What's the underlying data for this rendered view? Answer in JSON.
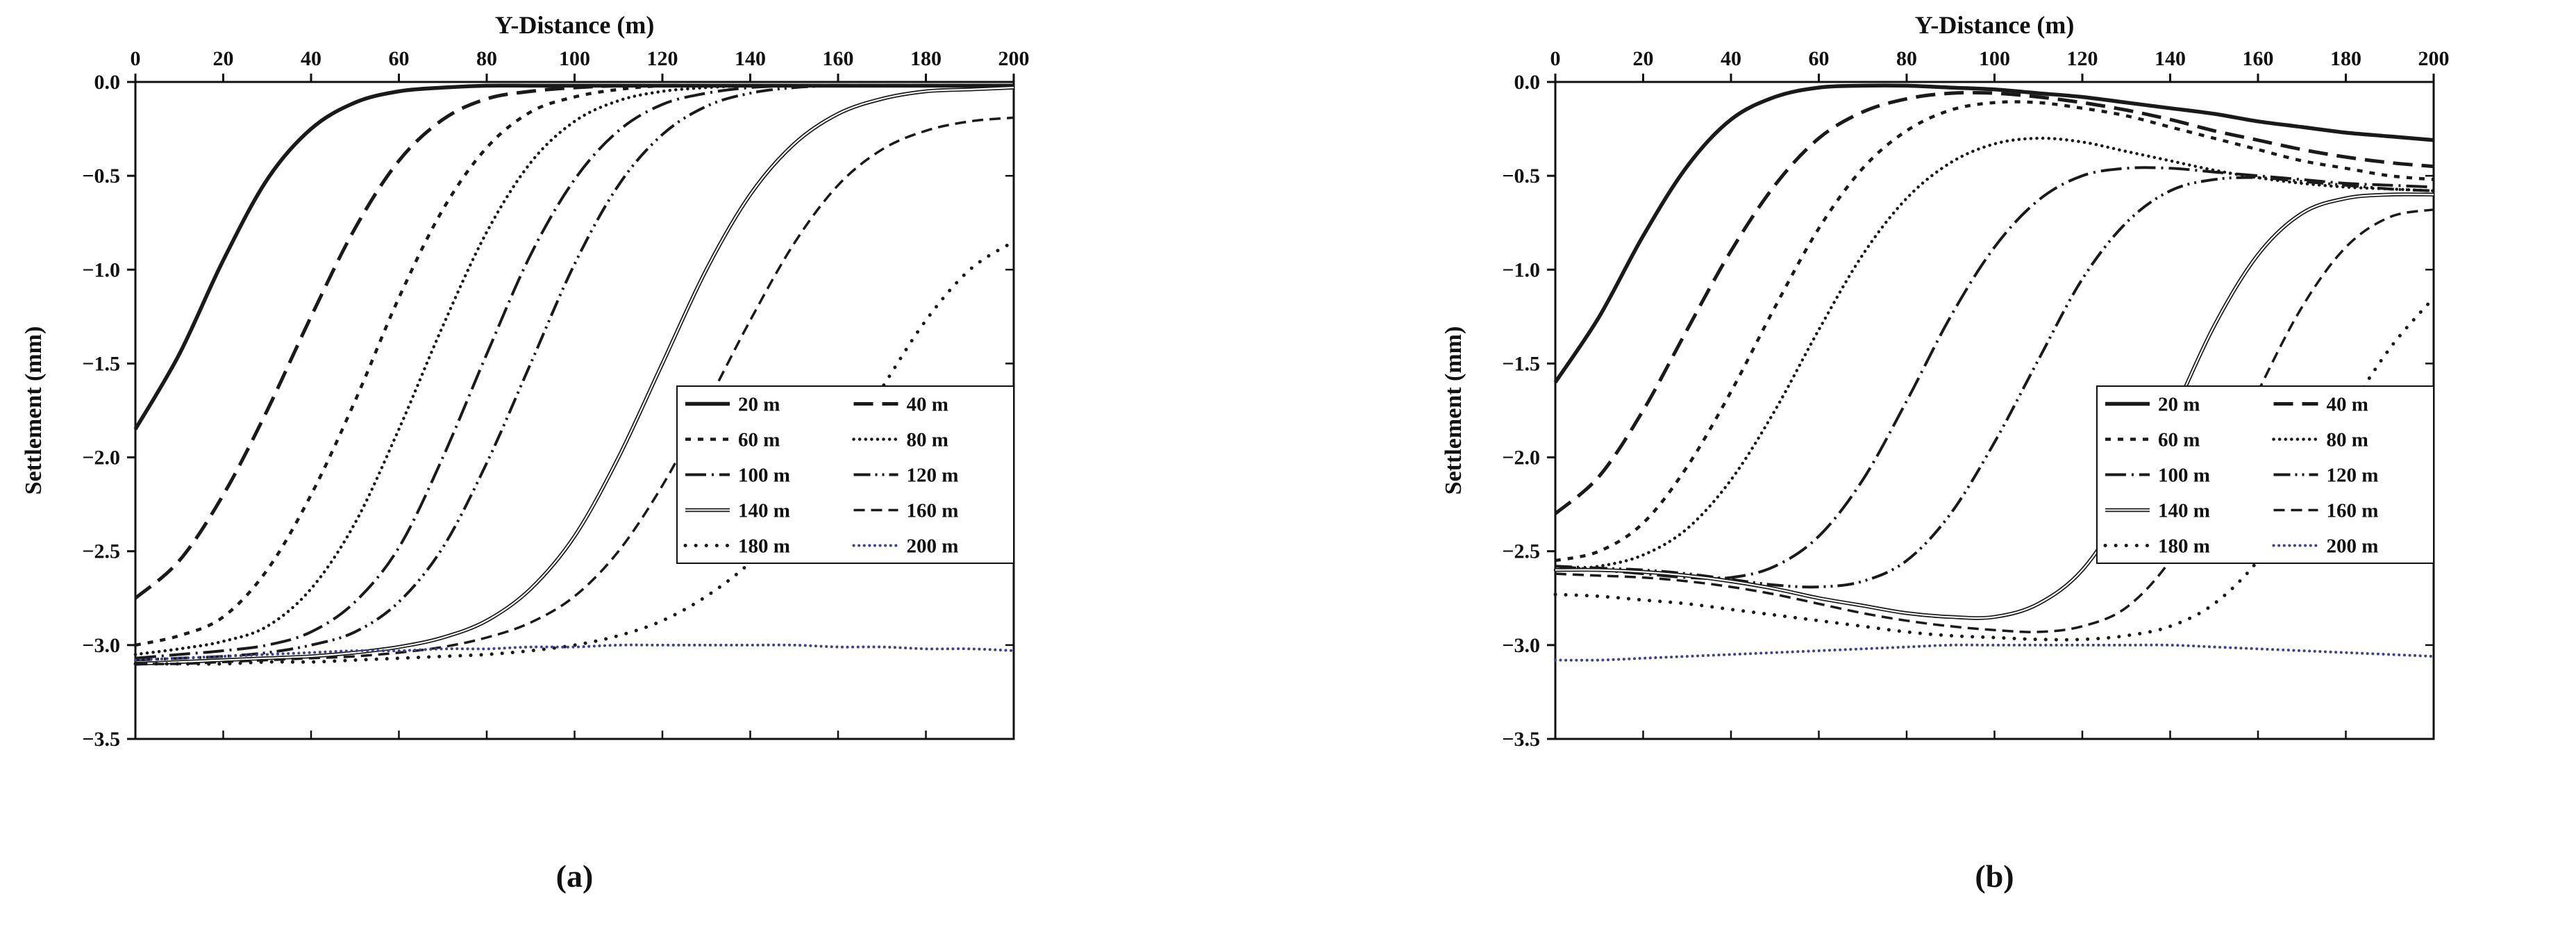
{
  "figure": {
    "background": "#ffffff",
    "line_color": "#1a1a1a",
    "accent_200m_color": "#40408c"
  },
  "chart_data": [
    {
      "type": "line",
      "title": "Y-Distance (m)",
      "xlabel": "Y-Distance (m)",
      "ylabel": "Settlement (mm)",
      "caption": "(a)",
      "xlim": [
        0,
        200
      ],
      "ylim": [
        -3.5,
        0
      ],
      "x_axis_position": "top",
      "grid": false,
      "legend_position": "inside-lower-right",
      "x_ticks": [
        0,
        20,
        40,
        60,
        80,
        100,
        120,
        140,
        160,
        180,
        200
      ],
      "x_tick_labels": [
        "0",
        "20",
        "40",
        "60",
        "80",
        "100",
        "120",
        "140",
        "160",
        "180",
        "200"
      ],
      "y_ticks": [
        0,
        -0.5,
        -1.0,
        -1.5,
        -2.0,
        -2.5,
        -3.0,
        -3.5
      ],
      "y_tick_labels": [
        "0.0",
        "−0.5",
        "−1.0",
        "−1.5",
        "−2.0",
        "−2.5",
        "−3.0",
        "−3.5"
      ],
      "x": [
        0,
        10,
        20,
        30,
        40,
        50,
        60,
        70,
        80,
        90,
        100,
        110,
        120,
        130,
        140,
        150,
        160,
        170,
        180,
        190,
        200
      ],
      "series": [
        {
          "name": "20 m",
          "style": "solid",
          "color": "#1a1a1a",
          "values": [
            -1.85,
            -1.45,
            -0.95,
            -0.52,
            -0.25,
            -0.11,
            -0.05,
            -0.03,
            -0.02,
            -0.02,
            -0.02,
            -0.02,
            -0.02,
            -0.02,
            -0.02,
            -0.02,
            -0.02,
            -0.02,
            -0.02,
            -0.02,
            -0.02
          ]
        },
        {
          "name": "40 m",
          "style": "long-dash",
          "color": "#1a1a1a",
          "values": [
            -2.75,
            -2.55,
            -2.2,
            -1.75,
            -1.25,
            -0.78,
            -0.42,
            -0.2,
            -0.09,
            -0.05,
            -0.03,
            -0.02,
            -0.02,
            -0.02,
            -0.02,
            -0.02,
            -0.02,
            -0.02,
            -0.02,
            -0.02,
            -0.02
          ]
        },
        {
          "name": "60 m",
          "style": "short-dash",
          "color": "#1a1a1a",
          "values": [
            -3.0,
            -2.95,
            -2.85,
            -2.6,
            -2.2,
            -1.7,
            -1.15,
            -0.68,
            -0.35,
            -0.16,
            -0.08,
            -0.04,
            -0.02,
            -0.02,
            -0.02,
            -0.02,
            -0.02,
            -0.02,
            -0.02,
            -0.02,
            -0.02
          ]
        },
        {
          "name": "80 m",
          "style": "dot",
          "color": "#1a1a1a",
          "values": [
            -3.05,
            -3.02,
            -2.98,
            -2.9,
            -2.7,
            -2.35,
            -1.85,
            -1.3,
            -0.8,
            -0.43,
            -0.21,
            -0.1,
            -0.05,
            -0.03,
            -0.02,
            -0.02,
            -0.02,
            -0.02,
            -0.02,
            -0.02,
            -0.02
          ]
        },
        {
          "name": "100 m",
          "style": "dash-dot",
          "color": "#1a1a1a",
          "values": [
            -3.07,
            -3.05,
            -3.03,
            -3.0,
            -2.93,
            -2.77,
            -2.48,
            -2.0,
            -1.45,
            -0.92,
            -0.52,
            -0.26,
            -0.12,
            -0.06,
            -0.03,
            -0.02,
            -0.02,
            -0.02,
            -0.02,
            -0.02,
            -0.02
          ]
        },
        {
          "name": "120 m",
          "style": "dash-dot-dot",
          "color": "#1a1a1a",
          "values": [
            -3.08,
            -3.07,
            -3.06,
            -3.04,
            -3.0,
            -2.93,
            -2.77,
            -2.48,
            -2.03,
            -1.5,
            -0.97,
            -0.55,
            -0.28,
            -0.13,
            -0.06,
            -0.03,
            -0.02,
            -0.02,
            -0.02,
            -0.02,
            -0.02
          ]
        },
        {
          "name": "140 m",
          "style": "double-solid",
          "color": "#1a1a1a",
          "values": [
            -3.1,
            -3.09,
            -3.08,
            -3.07,
            -3.06,
            -3.04,
            -3.01,
            -2.96,
            -2.87,
            -2.7,
            -2.42,
            -2.0,
            -1.5,
            -1.0,
            -0.6,
            -0.33,
            -0.17,
            -0.09,
            -0.05,
            -0.04,
            -0.03
          ]
        },
        {
          "name": "160 m",
          "style": "dash",
          "color": "#1a1a1a",
          "values": [
            -3.1,
            -3.1,
            -3.09,
            -3.08,
            -3.07,
            -3.06,
            -3.04,
            -3.01,
            -2.96,
            -2.88,
            -2.74,
            -2.5,
            -2.15,
            -1.72,
            -1.27,
            -0.86,
            -0.55,
            -0.36,
            -0.26,
            -0.21,
            -0.19
          ]
        },
        {
          "name": "180 m",
          "style": "sparse-dot",
          "color": "#1a1a1a",
          "values": [
            -3.1,
            -3.1,
            -3.1,
            -3.09,
            -3.09,
            -3.08,
            -3.07,
            -3.06,
            -3.05,
            -3.03,
            -3.0,
            -2.95,
            -2.87,
            -2.74,
            -2.56,
            -2.31,
            -2.0,
            -1.63,
            -1.27,
            -1.0,
            -0.85
          ]
        },
        {
          "name": "200 m",
          "style": "dot-dense",
          "color": "#40408c",
          "values": [
            -3.08,
            -3.07,
            -3.06,
            -3.05,
            -3.04,
            -3.03,
            -3.03,
            -3.02,
            -3.02,
            -3.01,
            -3.01,
            -3.0,
            -3.0,
            -3.0,
            -3.0,
            -3.0,
            -3.01,
            -3.01,
            -3.02,
            -3.02,
            -3.03
          ]
        }
      ]
    },
    {
      "type": "line",
      "title": "Y-Distance (m)",
      "xlabel": "Y-Distance (m)",
      "ylabel": "Settlement (mm)",
      "caption": "(b)",
      "xlim": [
        0,
        200
      ],
      "ylim": [
        -3.5,
        0
      ],
      "x_axis_position": "top",
      "grid": false,
      "legend_position": "inside-lower-right",
      "x_ticks": [
        0,
        20,
        40,
        60,
        80,
        100,
        120,
        140,
        160,
        180,
        200
      ],
      "x_tick_labels": [
        "0",
        "20",
        "40",
        "60",
        "80",
        "100",
        "120",
        "140",
        "160",
        "180",
        "200"
      ],
      "y_ticks": [
        0,
        -0.5,
        -1.0,
        -1.5,
        -2.0,
        -2.5,
        -3.0,
        -3.5
      ],
      "y_tick_labels": [
        "0.0",
        "−0.5",
        "−1.0",
        "−1.5",
        "−2.0",
        "−2.5",
        "−3.0",
        "−3.5"
      ],
      "x": [
        0,
        10,
        20,
        30,
        40,
        50,
        60,
        70,
        80,
        90,
        100,
        110,
        120,
        130,
        140,
        150,
        160,
        170,
        180,
        190,
        200
      ],
      "series": [
        {
          "name": "20 m",
          "style": "solid",
          "color": "#1a1a1a",
          "values": [
            -1.6,
            -1.25,
            -0.82,
            -0.45,
            -0.2,
            -0.08,
            -0.03,
            -0.02,
            -0.02,
            -0.03,
            -0.04,
            -0.06,
            -0.08,
            -0.11,
            -0.14,
            -0.17,
            -0.21,
            -0.24,
            -0.27,
            -0.29,
            -0.31
          ]
        },
        {
          "name": "40 m",
          "style": "long-dash",
          "color": "#1a1a1a",
          "values": [
            -2.3,
            -2.1,
            -1.75,
            -1.32,
            -0.9,
            -0.55,
            -0.3,
            -0.16,
            -0.09,
            -0.06,
            -0.06,
            -0.08,
            -0.11,
            -0.15,
            -0.2,
            -0.26,
            -0.31,
            -0.36,
            -0.4,
            -0.43,
            -0.45
          ]
        },
        {
          "name": "60 m",
          "style": "short-dash",
          "color": "#1a1a1a",
          "values": [
            -2.55,
            -2.5,
            -2.35,
            -2.05,
            -1.65,
            -1.2,
            -0.78,
            -0.46,
            -0.26,
            -0.15,
            -0.11,
            -0.11,
            -0.14,
            -0.18,
            -0.24,
            -0.3,
            -0.36,
            -0.42,
            -0.46,
            -0.5,
            -0.52
          ]
        },
        {
          "name": "80 m",
          "style": "dot",
          "color": "#1a1a1a",
          "values": [
            -2.6,
            -2.58,
            -2.52,
            -2.38,
            -2.12,
            -1.75,
            -1.32,
            -0.92,
            -0.62,
            -0.43,
            -0.33,
            -0.3,
            -0.32,
            -0.37,
            -0.42,
            -0.47,
            -0.51,
            -0.54,
            -0.56,
            -0.57,
            -0.58
          ]
        },
        {
          "name": "100 m",
          "style": "dash-dot",
          "color": "#1a1a1a",
          "values": [
            -2.58,
            -2.6,
            -2.62,
            -2.64,
            -2.64,
            -2.58,
            -2.42,
            -2.12,
            -1.7,
            -1.25,
            -0.88,
            -0.63,
            -0.5,
            -0.46,
            -0.46,
            -0.48,
            -0.5,
            -0.52,
            -0.54,
            -0.55,
            -0.56
          ]
        },
        {
          "name": "120 m",
          "style": "dash-dot-dot",
          "color": "#1a1a1a",
          "values": [
            -2.58,
            -2.59,
            -2.6,
            -2.62,
            -2.65,
            -2.68,
            -2.69,
            -2.66,
            -2.55,
            -2.3,
            -1.92,
            -1.48,
            -1.05,
            -0.75,
            -0.58,
            -0.52,
            -0.51,
            -0.53,
            -0.55,
            -0.57,
            -0.58
          ]
        },
        {
          "name": "140 m",
          "style": "double-solid",
          "color": "#1a1a1a",
          "values": [
            -2.6,
            -2.6,
            -2.61,
            -2.63,
            -2.66,
            -2.7,
            -2.75,
            -2.79,
            -2.83,
            -2.85,
            -2.85,
            -2.78,
            -2.6,
            -2.25,
            -1.8,
            -1.3,
            -0.92,
            -0.7,
            -0.62,
            -0.6,
            -0.6
          ]
        },
        {
          "name": "160 m",
          "style": "dash",
          "color": "#1a1a1a",
          "values": [
            -2.62,
            -2.63,
            -2.64,
            -2.66,
            -2.69,
            -2.73,
            -2.78,
            -2.83,
            -2.87,
            -2.9,
            -2.92,
            -2.93,
            -2.9,
            -2.8,
            -2.55,
            -2.15,
            -1.65,
            -1.2,
            -0.88,
            -0.72,
            -0.68
          ]
        },
        {
          "name": "180 m",
          "style": "sparse-dot",
          "color": "#1a1a1a",
          "values": [
            -2.73,
            -2.74,
            -2.76,
            -2.78,
            -2.81,
            -2.84,
            -2.87,
            -2.9,
            -2.93,
            -2.95,
            -2.96,
            -2.97,
            -2.97,
            -2.95,
            -2.9,
            -2.78,
            -2.55,
            -2.2,
            -1.78,
            -1.42,
            -1.15
          ]
        },
        {
          "name": "200 m",
          "style": "dot-dense",
          "color": "#40408c",
          "values": [
            -3.08,
            -3.08,
            -3.07,
            -3.06,
            -3.05,
            -3.04,
            -3.03,
            -3.02,
            -3.01,
            -3.0,
            -3.0,
            -3.0,
            -3.0,
            -3.0,
            -3.0,
            -3.01,
            -3.02,
            -3.03,
            -3.04,
            -3.05,
            -3.06
          ]
        }
      ]
    }
  ]
}
